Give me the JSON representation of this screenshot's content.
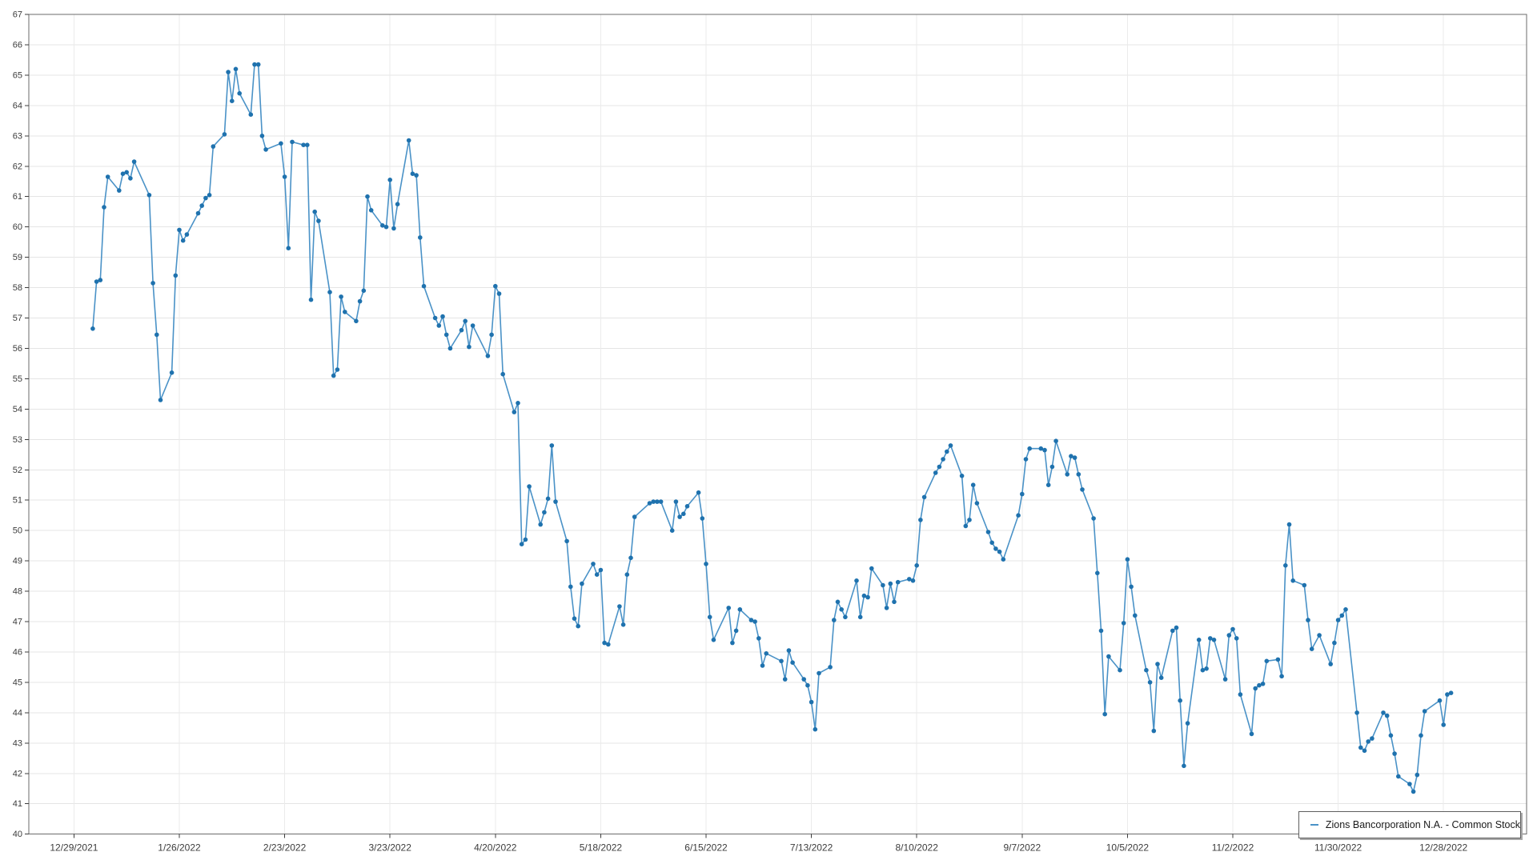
{
  "legend": {
    "label": "Zions Bancorporation N.A. - Common Stock"
  },
  "chart_data": {
    "type": "line",
    "title": "",
    "xlabel": "",
    "ylabel": "",
    "grid": true,
    "legend_position": "bottom-right",
    "ylim": [
      40,
      67
    ],
    "y_ticks": [
      40,
      41,
      42,
      43,
      44,
      45,
      46,
      47,
      48,
      49,
      50,
      51,
      52,
      53,
      54,
      55,
      56,
      57,
      58,
      59,
      60,
      61,
      62,
      63,
      64,
      65,
      66,
      67
    ],
    "x_ticks": [
      "12/29/2021",
      "1/26/2022",
      "2/23/2022",
      "3/23/2022",
      "4/20/2022",
      "5/18/2022",
      "6/15/2022",
      "7/13/2022",
      "8/10/2022",
      "9/7/2022",
      "10/5/2022",
      "11/2/2022",
      "11/30/2022",
      "12/28/2022"
    ],
    "x_axis_start": "12/17/2021",
    "x_axis_end": "1/19/2023",
    "series": [
      {
        "name": "Zions Bancorporation N.A. - Common Stock",
        "line_color": "#4a92c7",
        "marker_color": "#1f72ae",
        "dates": [
          "1/3",
          "1/4",
          "1/5",
          "1/6",
          "1/7",
          "1/10",
          "1/11",
          "1/12",
          "1/13",
          "1/14",
          "1/18",
          "1/19",
          "1/20",
          "1/21",
          "1/24",
          "1/25",
          "1/26",
          "1/27",
          "1/28",
          "1/31",
          "2/1",
          "2/2",
          "2/3",
          "2/4",
          "2/7",
          "2/8",
          "2/9",
          "2/10",
          "2/11",
          "2/14",
          "2/15",
          "2/16",
          "2/17",
          "2/18",
          "2/22",
          "2/23",
          "2/24",
          "2/25",
          "2/28",
          "3/1",
          "3/2",
          "3/3",
          "3/4",
          "3/7",
          "3/8",
          "3/9",
          "3/10",
          "3/11",
          "3/14",
          "3/15",
          "3/16",
          "3/17",
          "3/18",
          "3/21",
          "3/22",
          "3/23",
          "3/24",
          "3/25",
          "3/28",
          "3/29",
          "3/30",
          "3/31",
          "4/1",
          "4/4",
          "4/5",
          "4/6",
          "4/7",
          "4/8",
          "4/11",
          "4/12",
          "4/13",
          "4/14",
          "4/18",
          "4/19",
          "4/20",
          "4/21",
          "4/22",
          "4/25",
          "4/26",
          "4/27",
          "4/28",
          "4/29",
          "5/2",
          "5/3",
          "5/4",
          "5/5",
          "5/6",
          "5/9",
          "5/10",
          "5/11",
          "5/12",
          "5/13",
          "5/16",
          "5/17",
          "5/18",
          "5/19",
          "5/20",
          "5/23",
          "5/24",
          "5/25",
          "5/26",
          "5/27",
          "5/31",
          "6/1",
          "6/2",
          "6/3",
          "6/6",
          "6/7",
          "6/8",
          "6/9",
          "6/10",
          "6/13",
          "6/14",
          "6/15",
          "6/16",
          "6/17",
          "6/21",
          "6/22",
          "6/23",
          "6/24",
          "6/27",
          "6/28",
          "6/29",
          "6/30",
          "7/1",
          "7/5",
          "7/6",
          "7/7",
          "7/8",
          "7/11",
          "7/12",
          "7/13",
          "7/14",
          "7/15",
          "7/18",
          "7/19",
          "7/20",
          "7/21",
          "7/22",
          "7/25",
          "7/26",
          "7/27",
          "7/28",
          "7/29",
          "8/1",
          "8/2",
          "8/3",
          "8/4",
          "8/5",
          "8/8",
          "8/9",
          "8/10",
          "8/11",
          "8/12",
          "8/15",
          "8/16",
          "8/17",
          "8/18",
          "8/19",
          "8/22",
          "8/23",
          "8/24",
          "8/25",
          "8/26",
          "8/29",
          "8/30",
          "8/31",
          "9/1",
          "9/2",
          "9/6",
          "9/7",
          "9/8",
          "9/9",
          "9/12",
          "9/13",
          "9/14",
          "9/15",
          "9/16",
          "9/19",
          "9/20",
          "9/21",
          "9/22",
          "9/23",
          "9/26",
          "9/27",
          "9/28",
          "9/29",
          "9/30",
          "10/3",
          "10/4",
          "10/5",
          "10/6",
          "10/7",
          "10/10",
          "10/11",
          "10/12",
          "10/13",
          "10/14",
          "10/17",
          "10/18",
          "10/19",
          "10/20",
          "10/21",
          "10/24",
          "10/25",
          "10/26",
          "10/27",
          "10/28",
          "10/31",
          "11/1",
          "11/2",
          "11/3",
          "11/4",
          "11/7",
          "11/8",
          "11/9",
          "11/10",
          "11/11",
          "11/14",
          "11/15",
          "11/16",
          "11/17",
          "11/18",
          "11/21",
          "11/22",
          "11/23",
          "11/25",
          "11/28",
          "11/29",
          "11/30",
          "12/1",
          "12/2",
          "12/5",
          "12/6",
          "12/7",
          "12/8",
          "12/9",
          "12/12",
          "12/13",
          "12/14",
          "12/15",
          "12/16",
          "12/19",
          "12/20",
          "12/21",
          "12/22",
          "12/23",
          "12/27",
          "12/28",
          "12/29",
          "12/30"
        ],
        "values": [
          56.65,
          58.2,
          58.25,
          60.65,
          61.65,
          61.2,
          61.75,
          61.8,
          61.6,
          62.15,
          61.05,
          58.15,
          56.45,
          54.3,
          55.2,
          58.4,
          59.9,
          59.55,
          59.75,
          60.45,
          60.7,
          60.95,
          61.05,
          62.65,
          63.05,
          65.1,
          64.15,
          65.2,
          64.4,
          63.7,
          65.35,
          65.35,
          63.0,
          62.55,
          62.75,
          61.65,
          59.3,
          62.8,
          62.7,
          62.7,
          57.6,
          60.5,
          60.2,
          57.85,
          55.1,
          55.3,
          57.7,
          57.2,
          56.9,
          57.55,
          57.9,
          61.0,
          60.55,
          60.05,
          60.0,
          61.55,
          59.95,
          60.75,
          62.85,
          61.75,
          61.7,
          59.65,
          58.05,
          57.0,
          56.75,
          57.05,
          56.45,
          56.0,
          56.6,
          56.9,
          56.05,
          56.75,
          55.75,
          56.45,
          58.05,
          57.8,
          55.15,
          53.9,
          54.2,
          49.55,
          49.7,
          51.45,
          50.2,
          50.6,
          51.05,
          52.8,
          50.95,
          49.65,
          48.15,
          47.1,
          46.85,
          48.25,
          48.9,
          48.55,
          48.7,
          46.3,
          46.25,
          47.5,
          46.9,
          48.55,
          49.1,
          50.45,
          50.9,
          50.95,
          50.95,
          50.95,
          50.0,
          50.95,
          50.45,
          50.55,
          50.8,
          51.25,
          50.4,
          48.9,
          47.15,
          46.4,
          47.45,
          46.3,
          46.7,
          47.4,
          47.05,
          47.0,
          46.45,
          45.55,
          45.95,
          45.7,
          45.1,
          46.05,
          45.65,
          45.1,
          44.9,
          44.35,
          43.45,
          45.3,
          45.5,
          47.05,
          47.65,
          47.4,
          47.15,
          48.35,
          47.15,
          47.85,
          47.8,
          48.75,
          48.2,
          47.45,
          48.25,
          47.65,
          48.3,
          48.4,
          48.35,
          48.85,
          50.35,
          51.1,
          51.9,
          52.1,
          52.35,
          52.6,
          52.8,
          51.8,
          50.15,
          50.35,
          51.5,
          50.9,
          49.95,
          49.6,
          49.4,
          49.3,
          49.05,
          50.5,
          51.2,
          52.35,
          52.7,
          52.7,
          52.65,
          51.5,
          52.1,
          52.95,
          51.85,
          52.45,
          52.4,
          51.85,
          51.35,
          50.4,
          48.6,
          46.7,
          43.95,
          45.85,
          45.4,
          46.95,
          49.05,
          48.15,
          47.2,
          45.4,
          45.0,
          43.4,
          45.6,
          45.15,
          46.7,
          46.8,
          44.4,
          42.25,
          43.65,
          46.4,
          45.4,
          45.45,
          46.45,
          46.4,
          45.1,
          46.55,
          46.75,
          46.45,
          44.6,
          43.3,
          44.8,
          44.9,
          44.95,
          45.7,
          45.75,
          45.2,
          48.85,
          50.2,
          48.35,
          48.2,
          47.05,
          46.1,
          46.55,
          45.6,
          46.3,
          47.05,
          47.2,
          47.4,
          44.0,
          42.85,
          42.75,
          43.05,
          43.15,
          44.0,
          43.9,
          43.25,
          42.65,
          41.9,
          41.65,
          41.4,
          41.95,
          43.25,
          44.05,
          44.4,
          43.6,
          44.6,
          44.65
        ]
      }
    ]
  }
}
